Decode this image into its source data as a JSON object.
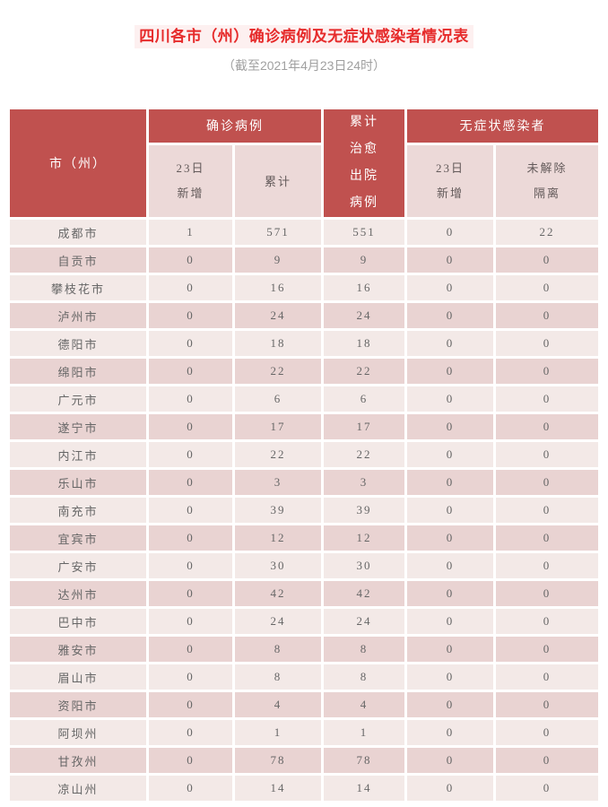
{
  "page": {
    "title": "四川各市（州）确诊病例及无症状感染者情况表",
    "subtitle": "（截至2021年4月23日24时）"
  },
  "colors": {
    "title_red": "#e62b2b",
    "title_highlight": "#fdf0f0",
    "subtitle_gray": "#a0a0a0",
    "header_red": "#c0514f",
    "header_text": "#ffffff",
    "subheader_bg": "#ecd9d8",
    "subheader_text": "#635a5a",
    "row_light": "#f3e9e7",
    "row_dark": "#e9d3d2",
    "data_text": "#666666"
  },
  "table": {
    "headers": {
      "city": "市（州）",
      "confirmed_group": "确诊病例",
      "confirmed_new": "23日\n新增",
      "confirmed_total": "累计",
      "cured_discharged": "累计\n治愈\n出院\n病例",
      "asymptomatic_group": "无症状感染者",
      "asymptomatic_new": "23日\n新增",
      "asymptomatic_remaining": "未解除\n隔离"
    },
    "rows": [
      {
        "city": "成都市",
        "confirmed_new": "1",
        "confirmed_total": "571",
        "cured_discharged": "551",
        "asymptomatic_new": "0",
        "asymptomatic_remaining": "22"
      },
      {
        "city": "自贡市",
        "confirmed_new": "0",
        "confirmed_total": "9",
        "cured_discharged": "9",
        "asymptomatic_new": "0",
        "asymptomatic_remaining": "0"
      },
      {
        "city": "攀枝花市",
        "confirmed_new": "0",
        "confirmed_total": "16",
        "cured_discharged": "16",
        "asymptomatic_new": "0",
        "asymptomatic_remaining": "0"
      },
      {
        "city": "泸州市",
        "confirmed_new": "0",
        "confirmed_total": "24",
        "cured_discharged": "24",
        "asymptomatic_new": "0",
        "asymptomatic_remaining": "0"
      },
      {
        "city": "德阳市",
        "confirmed_new": "0",
        "confirmed_total": "18",
        "cured_discharged": "18",
        "asymptomatic_new": "0",
        "asymptomatic_remaining": "0"
      },
      {
        "city": "绵阳市",
        "confirmed_new": "0",
        "confirmed_total": "22",
        "cured_discharged": "22",
        "asymptomatic_new": "0",
        "asymptomatic_remaining": "0"
      },
      {
        "city": "广元市",
        "confirmed_new": "0",
        "confirmed_total": "6",
        "cured_discharged": "6",
        "asymptomatic_new": "0",
        "asymptomatic_remaining": "0"
      },
      {
        "city": "遂宁市",
        "confirmed_new": "0",
        "confirmed_total": "17",
        "cured_discharged": "17",
        "asymptomatic_new": "0",
        "asymptomatic_remaining": "0"
      },
      {
        "city": "内江市",
        "confirmed_new": "0",
        "confirmed_total": "22",
        "cured_discharged": "22",
        "asymptomatic_new": "0",
        "asymptomatic_remaining": "0"
      },
      {
        "city": "乐山市",
        "confirmed_new": "0",
        "confirmed_total": "3",
        "cured_discharged": "3",
        "asymptomatic_new": "0",
        "asymptomatic_remaining": "0"
      },
      {
        "city": "南充市",
        "confirmed_new": "0",
        "confirmed_total": "39",
        "cured_discharged": "39",
        "asymptomatic_new": "0",
        "asymptomatic_remaining": "0"
      },
      {
        "city": "宜宾市",
        "confirmed_new": "0",
        "confirmed_total": "12",
        "cured_discharged": "12",
        "asymptomatic_new": "0",
        "asymptomatic_remaining": "0"
      },
      {
        "city": "广安市",
        "confirmed_new": "0",
        "confirmed_total": "30",
        "cured_discharged": "30",
        "asymptomatic_new": "0",
        "asymptomatic_remaining": "0"
      },
      {
        "city": "达州市",
        "confirmed_new": "0",
        "confirmed_total": "42",
        "cured_discharged": "42",
        "asymptomatic_new": "0",
        "asymptomatic_remaining": "0"
      },
      {
        "city": "巴中市",
        "confirmed_new": "0",
        "confirmed_total": "24",
        "cured_discharged": "24",
        "asymptomatic_new": "0",
        "asymptomatic_remaining": "0"
      },
      {
        "city": "雅安市",
        "confirmed_new": "0",
        "confirmed_total": "8",
        "cured_discharged": "8",
        "asymptomatic_new": "0",
        "asymptomatic_remaining": "0"
      },
      {
        "city": "眉山市",
        "confirmed_new": "0",
        "confirmed_total": "8",
        "cured_discharged": "8",
        "asymptomatic_new": "0",
        "asymptomatic_remaining": "0"
      },
      {
        "city": "资阳市",
        "confirmed_new": "0",
        "confirmed_total": "4",
        "cured_discharged": "4",
        "asymptomatic_new": "0",
        "asymptomatic_remaining": "0"
      },
      {
        "city": "阿坝州",
        "confirmed_new": "0",
        "confirmed_total": "1",
        "cured_discharged": "1",
        "asymptomatic_new": "0",
        "asymptomatic_remaining": "0"
      },
      {
        "city": "甘孜州",
        "confirmed_new": "0",
        "confirmed_total": "78",
        "cured_discharged": "78",
        "asymptomatic_new": "0",
        "asymptomatic_remaining": "0"
      },
      {
        "city": "凉山州",
        "confirmed_new": "0",
        "confirmed_total": "14",
        "cured_discharged": "14",
        "asymptomatic_new": "0",
        "asymptomatic_remaining": "0"
      }
    ]
  }
}
